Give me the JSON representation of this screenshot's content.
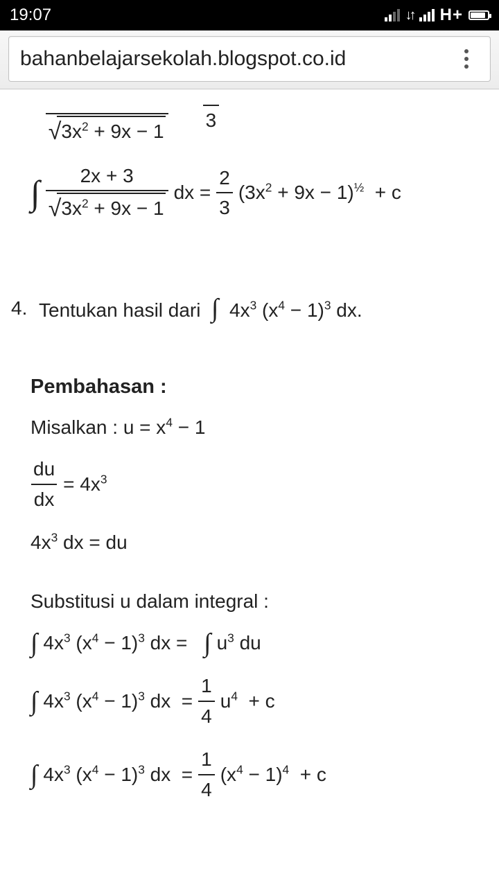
{
  "status": {
    "time": "19:07",
    "network": "H+"
  },
  "url": "bahanbelajarsekolah.blogspot.co.id",
  "eq_top": {
    "sqrt_body": "3x<sup>2</sup> + 9x − 1",
    "frac_right": {
      "num": "",
      "den": "3"
    }
  },
  "eq_main": {
    "numerator": "2x + 3",
    "sqrt_body": "3x<sup>2</sup> + 9x − 1",
    "dx_eq": "dx =",
    "frac_right": {
      "num": "2",
      "den": "3"
    },
    "rhs": "(3x<sup>2</sup> + 9x − 1)<sup>½</sup>&nbsp; + c"
  },
  "q4": {
    "num": "4.",
    "text_a": "Tentukan hasil dari",
    "text_b": "4x<sup>3</sup> (x<sup>4</sup> − 1)<sup>3</sup> dx."
  },
  "pembahasan": "Pembahasan :",
  "misalkan": "Misalkan : u = x<sup>4</sup> − 1",
  "dudx": {
    "num": "du",
    "den": "dx",
    "rhs": "= 4x<sup>3</sup>"
  },
  "line_4x3": "4x<sup>3</sup> dx = du",
  "subst_title": "Substitusi u dalam integral :",
  "s1": {
    "lhs": "4x<sup>3</sup> (x<sup>4</sup> − 1)<sup>3</sup> dx =",
    "rhs": "u<sup>3</sup> du"
  },
  "s2": {
    "lhs": "4x<sup>3</sup> (x<sup>4</sup> − 1)<sup>3</sup> dx&nbsp; =",
    "frac": {
      "num": "1",
      "den": "4"
    },
    "rhs": "u<sup>4</sup>&nbsp; + c"
  },
  "s3": {
    "lhs": "4x<sup>3</sup> (x<sup>4</sup> − 1)<sup>3</sup> dx&nbsp; =",
    "frac": {
      "num": "1",
      "den": "4"
    },
    "rhs": "(x<sup>4</sup> − 1)<sup>4</sup>&nbsp; + c"
  }
}
